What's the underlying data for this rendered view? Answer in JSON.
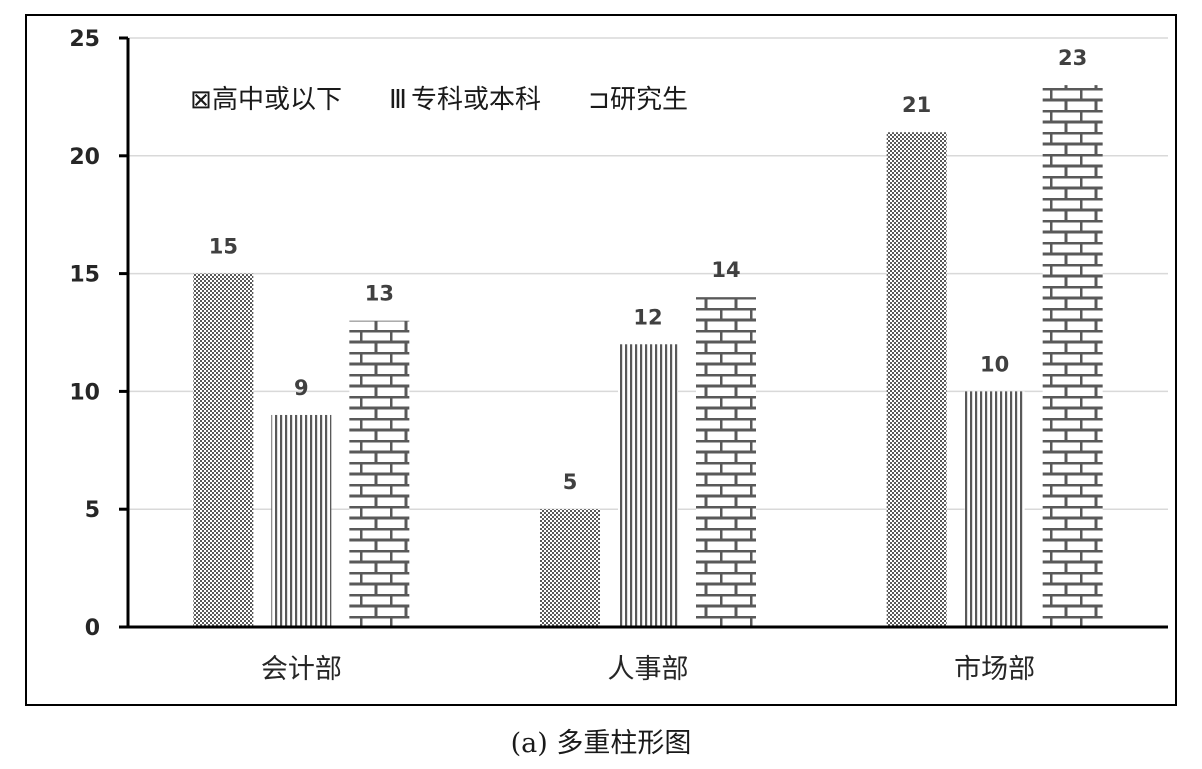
{
  "chart_data": {
    "type": "bar",
    "categories": [
      "会计部",
      "人事部",
      "市场部"
    ],
    "series": [
      {
        "name": "高中或以下",
        "values": [
          15,
          5,
          21
        ],
        "pattern": "checker"
      },
      {
        "name": "专科或本科",
        "values": [
          9,
          12,
          10
        ],
        "pattern": "vertical"
      },
      {
        "name": "研究生",
        "values": [
          13,
          14,
          23
        ],
        "pattern": "brick"
      }
    ],
    "ylim": [
      0,
      25
    ],
    "yticks": [
      0,
      5,
      10,
      15,
      20,
      25
    ],
    "grid": true,
    "legend_position": "top-left",
    "data_labels": true,
    "legend_icons": [
      "⊠",
      "Ⅲ",
      "⊐"
    ],
    "caption": "(a)   多重柱形图",
    "colors": {
      "bar": "#595959",
      "axis": "#000000",
      "grid": "#d9d9d9",
      "label": "#404040"
    }
  }
}
